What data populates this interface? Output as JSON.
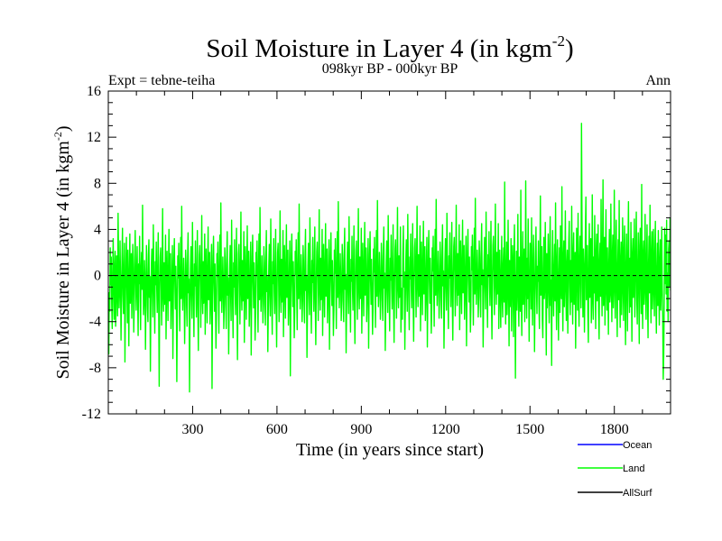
{
  "chart_data": {
    "type": "line",
    "title_main": "Soil Moisture in Layer 4 (in kgm",
    "title_sup": "-2",
    "title_close": ")",
    "subtitle": "098kyr BP - 000kyr BP",
    "expt_label": "Expt = tebne-teiha",
    "season_label": "Ann",
    "xlabel": "Time (in years since start)",
    "ylabel_main": "Soil Moisture in Layer 4 (in kgm",
    "ylabel_sup": "-2",
    "ylabel_close": ")",
    "xlim": [
      0,
      2000
    ],
    "ylim": [
      -12,
      16
    ],
    "x_ticks": [
      300,
      600,
      900,
      1200,
      1500,
      1800
    ],
    "x_tick_labels": [
      "300",
      "600",
      "900",
      "1200",
      "1500",
      "1800"
    ],
    "y_ticks": [
      -12,
      -8,
      -4,
      0,
      4,
      8,
      12,
      16
    ],
    "y_tick_labels": [
      "-12",
      "-8",
      "-4",
      "0",
      "4",
      "8",
      "12",
      "16"
    ],
    "zero_line": 0,
    "series": [
      {
        "name": "Ocean",
        "color": "#0000ff",
        "values": []
      },
      {
        "name": "Land",
        "color": "#00ff00",
        "values": [
          -4.2,
          -6.8,
          -1.5,
          -3.1,
          2.4,
          -0.8,
          1.6,
          -2.5,
          -4.6,
          0.3,
          3.2,
          -1.1,
          -3.8,
          0.9,
          2.1,
          -4.4,
          -2.2,
          1.7,
          -0.6,
          -3.5,
          5.4,
          1.2,
          -2.8,
          -1.4,
          3.0,
          -0.5,
          -5.6,
          -2.0,
          1.4,
          4.1,
          -1.7,
          -3.3,
          0.6,
          2.8,
          -7.5,
          -2.5,
          1.1,
          3.3,
          -0.9,
          -4.1,
          2.2,
          -1.3,
          -6.1,
          0.4,
          3.6,
          -2.4,
          -0.2,
          1.9,
          -3.7,
          -1.0,
          2.7,
          0.7,
          -4.9,
          -2.6,
          1.5,
          3.9,
          -0.4,
          -3.0,
          0.2,
          2.5,
          -1.8,
          -5.2,
          1.0,
          -0.7,
          3.4,
          -2.1,
          -4.7,
          0.8,
          2.0,
          -1.2,
          6.1,
          0.5,
          -3.4,
          -2.3,
          1.3,
          -0.3,
          -6.4,
          -1.6,
          2.6,
          0.1,
          -2.9,
          -4.0,
          1.8,
          3.1,
          -1.9,
          -0.1,
          -8.3,
          -2.7,
          0.9,
          2.3,
          -1.5,
          -3.6,
          4.4,
          0.6,
          -2.0,
          -5.0,
          1.2,
          -0.8,
          2.9,
          -1.1,
          -3.2,
          0.4,
          3.7,
          -2.8,
          -9.6,
          -1.4,
          1.6,
          2.4,
          -0.6,
          -4.3,
          0.0,
          5.8,
          -1.9,
          -3.1,
          1.1,
          -2.5,
          -0.4,
          3.5,
          -5.5,
          -1.3,
          2.1,
          -0.9,
          -3.9,
          0.7,
          4.0,
          -2.2,
          -1.0,
          1.9,
          -4.6,
          -2.4,
          0.3,
          2.6,
          -7.2,
          -1.7,
          1.4,
          3.2,
          -0.5,
          -2.9,
          0.8,
          -1.6,
          -9.2,
          -3.5,
          1.7,
          -0.2,
          2.8,
          -1.4,
          -4.8,
          0.5,
          3.3,
          -2.0,
          6.0,
          0.2,
          -3.0,
          -1.2,
          1.5,
          -0.7,
          -5.9,
          -2.3,
          2.2,
          0.9,
          -2.6,
          -4.4,
          1.3,
          3.7,
          -1.5,
          -0.3,
          -10.1,
          -3.2,
          0.6,
          2.5,
          -1.8,
          -3.7,
          4.6,
          0.4,
          -2.1,
          -5.3,
          1.0,
          -0.9,
          3.0,
          -1.3,
          -3.6,
          0.1,
          3.9,
          -2.7,
          -6.5,
          -1.1,
          1.8,
          2.6,
          -0.4,
          -4.5,
          0.2,
          5.2,
          -1.6,
          -3.3,
          1.2,
          -2.4,
          -0.6,
          3.6,
          -5.1,
          -1.5,
          2.3,
          -1.0,
          -4.1,
          0.8,
          4.2,
          -2.1,
          -1.2,
          2.0,
          -4.2,
          -2.6,
          0.5,
          2.7,
          -9.8,
          -1.9,
          1.5,
          3.4,
          -0.7,
          -3.1,
          1.0,
          -1.8,
          -6.3,
          -3.4,
          1.9,
          -0.1,
          2.9,
          -1.6,
          -5.0,
          0.6,
          3.5,
          -2.2,
          6.3,
          0.3,
          -3.2,
          -1.4,
          1.6,
          -0.5,
          -4.6,
          -2.5,
          2.4,
          1.0,
          -2.4,
          -4.6,
          1.4,
          3.8,
          -1.7,
          -0.2,
          -6.8,
          -3.0,
          0.7,
          2.6,
          -1.6,
          -3.9,
          4.8,
          0.5,
          -2.3,
          -5.4,
          1.1,
          -1.0,
          3.1,
          -1.2,
          -3.4,
          0.3,
          4.1,
          -2.6,
          -7.3,
          -1.2,
          1.9,
          2.7,
          -0.3,
          -4.2,
          0.4,
          5.5,
          -1.4,
          -3.0,
          1.3,
          -2.2,
          -0.8,
          3.8,
          -5.8,
          -1.4,
          2.5,
          -0.8,
          -3.8,
          0.9,
          4.3,
          -2.0,
          -1.3,
          2.1,
          -4.4,
          -2.5,
          0.6,
          2.9,
          -6.9,
          -1.8,
          1.6,
          3.5,
          -0.6,
          -2.8,
          1.1,
          -1.5,
          -5.6,
          -3.3,
          2.0,
          0.0,
          3.0,
          -1.5,
          -4.9,
          0.7,
          3.6,
          -2.1,
          5.9,
          0.4,
          -3.1,
          -1.3,
          1.7,
          -0.4,
          -4.1,
          -2.4,
          2.5,
          1.1,
          -2.5,
          -4.3,
          1.5,
          3.9,
          -1.4,
          -0.1,
          -6.6,
          -2.9,
          0.8,
          2.7,
          -1.7,
          -3.5,
          4.9,
          0.6,
          -2.2,
          -5.1,
          1.2,
          -0.7,
          3.2,
          -1.4,
          -3.3,
          0.2,
          4.0,
          -2.5,
          -6.2,
          -1.0,
          2.0,
          2.8,
          -0.2,
          -4.0,
          0.5,
          5.6,
          -1.5,
          -3.2,
          1.4,
          -2.3,
          -0.5,
          3.9,
          -5.3,
          -1.6,
          2.6,
          -0.9,
          -3.7,
          1.0,
          4.4,
          -1.9,
          -1.1,
          2.2,
          -4.3,
          -2.7,
          0.7,
          3.0,
          -8.7,
          -1.6,
          1.7,
          3.6,
          -0.8,
          -2.7,
          1.2,
          -1.4,
          -5.4,
          -3.1,
          2.1,
          0.1,
          3.1,
          -1.3,
          -4.7,
          0.8,
          3.7,
          -2.0,
          6.2,
          0.5,
          -2.9,
          -1.1,
          1.8,
          -0.3,
          -4.0,
          -2.2,
          2.6,
          1.2,
          -2.3,
          -4.1,
          1.6,
          4.0,
          -1.3,
          0.0,
          -7.1,
          -2.8,
          0.9,
          2.8,
          -1.5,
          -3.4,
          5.0,
          0.7,
          -2.0,
          -5.0,
          1.3,
          -0.6,
          3.3,
          -1.2,
          -3.1,
          0.4,
          4.2,
          -2.4,
          -6.0,
          -0.9,
          2.1,
          2.9,
          -0.1,
          -3.9,
          0.6,
          5.7,
          -1.3,
          -3.0,
          1.5,
          -2.1,
          -0.4,
          4.0,
          -5.2,
          -1.3,
          2.7,
          -0.7,
          -3.6,
          1.1,
          4.5,
          -1.8,
          -1.0,
          2.3,
          -4.1,
          -2.4,
          0.8,
          3.1,
          -6.4,
          -1.5,
          1.8,
          3.7,
          -0.5,
          -2.6,
          1.3,
          -1.3,
          -5.2,
          -3.0,
          2.2,
          0.2,
          3.2,
          -1.2,
          -4.6,
          0.9,
          3.8,
          -1.9,
          6.4,
          0.6,
          -2.8,
          -1.0,
          1.9,
          -0.2,
          -3.9,
          -2.1,
          2.7,
          1.3,
          -2.2,
          -4.0,
          1.7,
          4.1,
          -1.2,
          0.1,
          -6.7,
          -2.7,
          1.0,
          2.9,
          -1.4,
          -3.3,
          5.1,
          0.8,
          -1.9,
          -4.9,
          1.4,
          -0.5,
          3.4,
          -1.1,
          -3.0,
          0.5,
          4.3,
          -2.3,
          -5.9,
          -0.8,
          2.2,
          3.0,
          0.0,
          -3.8,
          0.7,
          5.8,
          -1.2,
          -2.9,
          1.6,
          -2.0,
          -0.3,
          4.1,
          -5.0,
          -1.2,
          2.8,
          -0.6,
          -3.5,
          1.2,
          4.6,
          -1.7,
          -0.9,
          2.4,
          -4.0,
          -2.3,
          0.9,
          3.2,
          -6.3,
          -1.4,
          1.9,
          3.8,
          -0.4,
          -2.5,
          1.4,
          -1.2,
          -5.1,
          -2.9,
          2.3,
          0.3,
          3.3,
          -1.1,
          -4.5,
          1.0,
          3.9,
          -1.8,
          6.5,
          0.7,
          -2.7,
          -0.9,
          2.0,
          -0.1,
          -3.8,
          -2.0,
          2.8,
          1.4,
          -2.1,
          -3.9,
          1.8,
          4.2,
          -1.1,
          0.2,
          -6.5,
          -2.6,
          1.1,
          3.0,
          -1.3,
          -3.2,
          5.2,
          0.9,
          -1.8,
          -4.8,
          1.5,
          -0.4,
          3.5,
          -1.0,
          -2.9,
          0.6,
          4.4,
          -2.2,
          -5.8,
          -0.7,
          2.3,
          3.1,
          0.1,
          -3.7,
          0.8,
          5.9,
          -1.1,
          -2.8,
          1.7,
          -1.9,
          -0.2,
          4.2,
          -4.9,
          -1.1,
          -2.0,
          -3.8,
          1.9,
          4.3,
          -1.0,
          0.3,
          -6.4,
          -2.5,
          1.2,
          3.1,
          -1.2,
          -3.1,
          5.3,
          1.0,
          -1.7,
          -4.7,
          1.6,
          -0.3,
          3.6,
          -0.9,
          -2.8,
          0.7,
          4.5,
          -2.1,
          -5.7,
          -0.6,
          2.4,
          3.2,
          0.2,
          -3.6,
          0.9,
          6.0,
          -1.0,
          -2.7,
          1.8,
          -1.8,
          -0.1,
          4.3,
          -4.8,
          -1.0,
          2.9,
          -0.5,
          -3.4,
          1.3,
          4.7,
          -1.6,
          -0.8,
          2.5,
          -3.9,
          -2.2,
          1.0,
          3.3,
          -6.2,
          -1.3,
          2.0,
          3.9,
          -0.3,
          -2.4,
          1.5,
          -1.1,
          -5.0,
          -2.8,
          2.4,
          0.4,
          3.4,
          -1.0,
          -4.4,
          1.1,
          4.0,
          -1.7,
          6.6,
          0.8,
          -2.6,
          -0.8,
          2.1,
          0.0,
          -3.7,
          -1.9,
          2.9,
          1.5,
          -1.9,
          -3.7,
          2.0,
          4.4,
          -0.9,
          0.4,
          -6.3,
          -2.4,
          1.3,
          3.2,
          -1.1,
          -3.0,
          5.4,
          1.1,
          -1.6,
          -4.6,
          1.7,
          -0.2,
          3.7,
          -0.8,
          -2.7,
          0.8,
          4.6,
          -2.0,
          -5.6,
          -0.5,
          2.5,
          3.3,
          0.3,
          -3.5,
          1.0,
          6.1,
          -0.9,
          -2.6,
          1.9,
          -1.7,
          0.0,
          4.4,
          -4.7,
          -0.9,
          3.0,
          -0.4,
          -3.3,
          1.4,
          4.8,
          -1.5,
          -0.7,
          2.6,
          -3.8,
          -2.1,
          1.1,
          3.4,
          -6.1,
          -1.2,
          2.1,
          4.0,
          -0.2,
          -2.3,
          1.6,
          -1.0,
          -4.9,
          -2.7,
          2.5,
          0.5,
          3.5,
          -0.9,
          -4.3,
          1.2,
          4.1,
          -1.6,
          6.7,
          0.9,
          -2.5,
          -0.7,
          2.2,
          0.1,
          -3.6,
          -1.8,
          3.0,
          1.6,
          -1.8,
          -3.6,
          2.1,
          4.5,
          -0.8,
          0.5,
          -6.2,
          -2.3,
          1.4,
          3.3,
          -1.0,
          -2.9,
          5.5,
          1.2,
          -1.5,
          -4.5,
          1.8,
          -0.1,
          3.8,
          -0.7,
          -2.6,
          0.9,
          4.7,
          -1.9,
          -5.5,
          -0.4,
          2.6,
          3.4,
          0.4,
          -3.4,
          1.1,
          6.2,
          -0.8,
          -2.5,
          2.0,
          -1.6,
          0.1,
          4.5,
          -4.6,
          -0.8,
          2.2,
          -1.9,
          -4.5,
          0.5,
          3.4,
          -2.1,
          -3.6,
          1.0,
          2.4,
          -2.3,
          8.1,
          -1.4,
          -4.2,
          0.6,
          2.9,
          -3.4,
          -1.5,
          4.8,
          -0.5,
          -6.1,
          1.3,
          -2.7,
          -0.9,
          3.2,
          -4.8,
          -1.2,
          2.6,
          -0.3,
          -5.3,
          1.8,
          4.4,
          -2.6,
          -8.9,
          -1.0,
          2.1,
          -3.0,
          0.4,
          5.3,
          -2.2,
          -4.4,
          1.6,
          -0.6,
          -3.1,
          7.4,
          -1.8,
          -5.2,
          0.9,
          3.8,
          -2.5,
          -0.8,
          2.3,
          -4.0,
          -1.4,
          8.2,
          0.2,
          -3.7,
          1.5,
          -2.0,
          4.9,
          -0.4,
          -5.7,
          -1.3,
          2.8,
          0.7,
          -2.9,
          5.0,
          -1.6,
          -4.3,
          1.1,
          3.5,
          -0.2,
          -6.6,
          -2.1,
          2.0,
          4.2,
          -1.1,
          -3.3,
          0.8,
          -0.5,
          3.0,
          -2.4,
          -4.6,
          1.4,
          6.9,
          -1.7,
          -0.9,
          2.5,
          -3.8,
          -5.4,
          0.6,
          3.3,
          -2.0,
          -1.0,
          4.6,
          -0.7,
          -6.9,
          1.9,
          -2.8,
          0.3,
          3.6,
          -1.5,
          -4.1,
          2.2,
          5.1,
          -2.6,
          -0.4,
          -7.8,
          1.0,
          3.9,
          -1.2,
          -3.5,
          0.5,
          2.7,
          -2.2,
          6.3,
          -0.8,
          -4.7,
          1.2,
          3.1,
          -1.9,
          -5.6,
          0.1,
          2.4,
          -3.2,
          4.3,
          -0.6,
          -2.0,
          7.7,
          -1.4,
          -4.8,
          1.7,
          3.0,
          -2.7,
          -0.2,
          5.6,
          -1.1,
          -3.9,
          0.9,
          2.2,
          -5.0,
          -1.6,
          2.9,
          4.7,
          -0.9,
          -3.4,
          1.3,
          -2.3,
          6.0,
          0.4,
          -4.2,
          1.8,
          3.7,
          -2.5,
          -0.7,
          2.0,
          -6.3,
          -1.2,
          4.1,
          0.6,
          -3.0,
          5.4,
          -1.7,
          -4.4,
          1.5,
          3.4,
          -0.1,
          -2.8,
          13.2,
          4.9,
          -1.0,
          -3.6,
          2.3,
          0.8,
          -4.9,
          -1.3,
          3.8,
          6.8,
          -2.1,
          -0.5,
          2.6,
          -3.3,
          -5.8,
          1.1,
          4.5,
          -1.9,
          -0.3,
          3.2,
          -4.1,
          -2.4,
          7.0,
          0.2,
          -3.8,
          1.6,
          -1.5,
          5.2,
          -0.8,
          -4.6,
          2.1,
          3.6,
          -2.2,
          -0.6,
          4.4,
          -3.1,
          -5.5,
          1.4,
          2.8,
          -1.8,
          6.6,
          -0.4,
          -3.5,
          1.9,
          8.3,
          -2.6,
          -1.1,
          3.3,
          -4.3,
          0.7,
          5.7,
          -1.4,
          -3.0,
          2.4,
          -0.9,
          -5.1,
          1.2,
          4.0,
          -2.3,
          -1.6,
          6.2,
          0.3,
          -4.0,
          1.7,
          3.5,
          -2.8,
          -0.2,
          7.4,
          -1.2,
          -3.7,
          2.0,
          4.8,
          -1.5,
          -5.3,
          0.6,
          3.1,
          -2.1,
          6.5,
          -0.7,
          -4.5,
          1.3,
          2.9,
          -3.4,
          -1.0,
          5.0,
          -0.3,
          -3.9,
          2.2,
          4.3,
          -2.4,
          -6.0,
          1.0,
          3.6,
          -1.7,
          -4.8,
          2.5,
          6.4,
          -0.5,
          -3.2,
          1.5,
          -2.7,
          4.6,
          0.1,
          -5.7,
          1.8,
          3.2,
          -1.9,
          -0.6,
          4.9,
          -3.6,
          -1.3,
          2.3,
          5.5,
          -2.0,
          -4.2,
          0.8,
          3.7,
          -1.1,
          -5.9,
          2.6,
          4.1,
          -0.8,
          -3.3,
          7.9,
          -1.6,
          -4.6,
          2.0,
          3.0,
          -2.5,
          -0.4,
          5.3,
          -1.4,
          -3.8,
          1.6,
          4.4,
          -2.2,
          -5.4,
          0.9,
          3.4,
          -1.5,
          6.1,
          -0.2,
          -4.1,
          1.9,
          3.8,
          -2.9,
          -0.7,
          4.0,
          -1.2,
          -3.5,
          2.1,
          4.7,
          -1.8,
          -5.0,
          0.4,
          2.8,
          -2.6,
          3.9,
          -0.6,
          -4.3,
          1.4,
          3.1,
          -3.0,
          -1.1,
          4.2,
          -0.9,
          -3.4,
          -9.0,
          -7.0,
          -2.4,
          4.1,
          -0.7,
          3.5,
          -1.6,
          4.8,
          -3.1,
          0.2,
          -4.0,
          2.3,
          3.0,
          -0.9,
          5.0,
          -1.3
        ]
      },
      {
        "name": "AllSurf",
        "color": "#000000",
        "values": []
      }
    ]
  }
}
